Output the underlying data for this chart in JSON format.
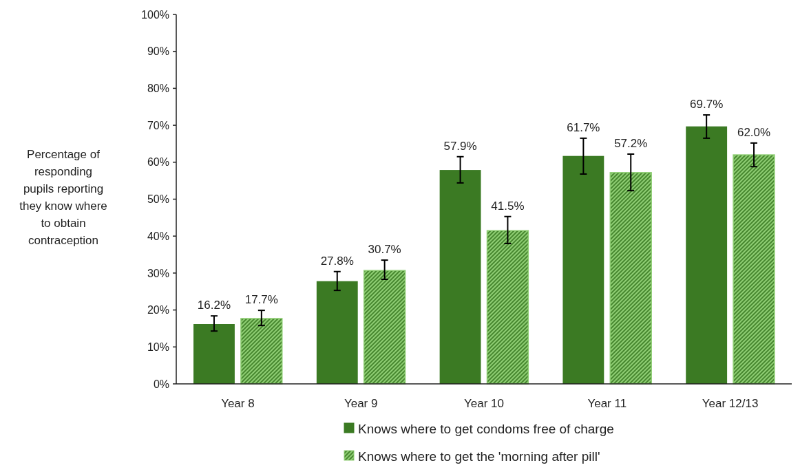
{
  "chart_data": {
    "type": "bar",
    "ylabel": "Percentage of responding pupils reporting they know where to obtain contraception",
    "categories": [
      "Year 8",
      "Year 9",
      "Year 10",
      "Year 11",
      "Year 12/13"
    ],
    "series": [
      {
        "name": "Knows where to get condoms free of charge",
        "color": "#3b7a23",
        "values": [
          16.2,
          27.8,
          57.9,
          61.7,
          69.7
        ],
        "value_labels": [
          "16.2%",
          "27.8%",
          "57.9%",
          "61.7%",
          "69.7%"
        ],
        "errors": [
          [
            14.3,
            18.4
          ],
          [
            25.3,
            30.4
          ],
          [
            54.4,
            61.5
          ],
          [
            56.8,
            66.5
          ],
          [
            66.5,
            72.8
          ]
        ]
      },
      {
        "name": "Knows where to get the 'morning after pill'",
        "color": "#8fce74",
        "values": [
          17.7,
          30.7,
          41.5,
          57.2,
          62.0
        ],
        "value_labels": [
          "17.7%",
          "30.7%",
          "41.5%",
          "57.2%",
          "62.0%"
        ],
        "errors": [
          [
            15.8,
            19.9
          ],
          [
            28.3,
            33.5
          ],
          [
            38.0,
            45.3
          ],
          [
            52.3,
            62.2
          ],
          [
            58.8,
            65.2
          ]
        ]
      }
    ],
    "ylim": [
      0,
      100
    ],
    "yticks": [
      {
        "value": 0,
        "label": "0%"
      },
      {
        "value": 10,
        "label": "10%"
      },
      {
        "value": 20,
        "label": "20%"
      },
      {
        "value": 30,
        "label": "30%"
      },
      {
        "value": 40,
        "label": "40%"
      },
      {
        "value": 50,
        "label": "50%"
      },
      {
        "value": 60,
        "label": "60%"
      },
      {
        "value": 70,
        "label": "70%"
      },
      {
        "value": 80,
        "label": "80%"
      },
      {
        "value": 90,
        "label": "90%"
      },
      {
        "value": 100,
        "label": "100%"
      }
    ],
    "grid": false,
    "legend": "bottom"
  }
}
